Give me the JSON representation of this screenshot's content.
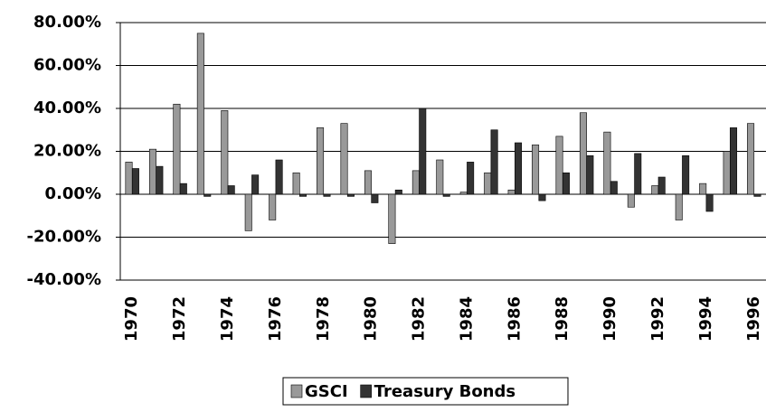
{
  "chart_data": {
    "type": "bar",
    "categories": [
      "1970",
      null,
      "1972",
      null,
      "1974",
      null,
      "1976",
      null,
      "1978",
      null,
      "1980",
      null,
      "1982",
      null,
      "1984",
      null,
      "1986",
      null,
      "1988",
      null,
      "1990",
      null,
      "1992",
      null,
      "1994",
      null,
      "1996"
    ],
    "series": [
      {
        "name": "GSCI",
        "color": "#999999",
        "values": [
          15,
          21,
          42,
          75,
          39,
          -17,
          -12,
          10,
          31,
          33,
          11,
          -23,
          11,
          16,
          1,
          10,
          2,
          23,
          27,
          38,
          29,
          -6,
          4,
          -12,
          5,
          20,
          33
        ]
      },
      {
        "name": "Treasury Bonds",
        "color": "#333333",
        "values": [
          12,
          13,
          5,
          -1,
          4,
          9,
          16,
          -1,
          -1,
          -1,
          -4,
          2,
          40,
          -1,
          15,
          30,
          24,
          -3,
          10,
          18,
          6,
          19,
          8,
          18,
          -8,
          31,
          -1
        ]
      }
    ],
    "ylim": [
      -40,
      80
    ],
    "yticks": [
      {
        "value": -40,
        "label": "-40.00%"
      },
      {
        "value": -20,
        "label": "-20.00%"
      },
      {
        "value": 0,
        "label": "0.00%"
      },
      {
        "value": 20,
        "label": "20.00%"
      },
      {
        "value": 40,
        "label": "40.00%"
      },
      {
        "value": 60,
        "label": "60.00%"
      },
      {
        "value": 80,
        "label": "80.00%"
      }
    ],
    "grid": true,
    "legend": "bottom"
  }
}
